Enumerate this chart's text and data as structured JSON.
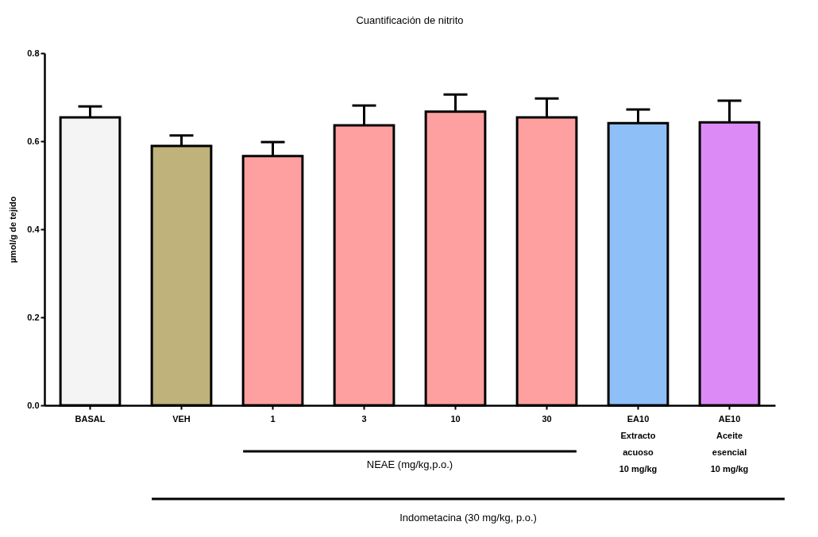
{
  "chart_data": {
    "type": "bar",
    "title": "Cuantificación de nitrito",
    "ylabel": "µmol/g de tejido",
    "categories": [
      "BASAL",
      "VEH",
      "1",
      "3",
      "10",
      "30",
      "EA10\nExtracto\nacuoso\n10 mg/kg",
      "AE10\nAceite\nesencial\n10 mg/kg"
    ],
    "values": [
      0.654,
      0.589,
      0.566,
      0.636,
      0.667,
      0.654,
      0.641,
      0.643
    ],
    "errors": [
      [
        0.654,
        0.679
      ],
      [
        0.589,
        0.613
      ],
      [
        0.566,
        0.598
      ],
      [
        0.636,
        0.681
      ],
      [
        0.667,
        0.706
      ],
      [
        0.654,
        0.697
      ],
      [
        0.641,
        0.672
      ],
      [
        0.643,
        0.692
      ]
    ],
    "colors": [
      "#f4f4f4",
      "#bfb27a",
      "#ffa0a0",
      "#ffa0a0",
      "#ffa0a0",
      "#ffa0a0",
      "#8fbff7",
      "#dc8af5"
    ],
    "ylim": [
      0,
      0.8
    ],
    "yticks": [
      {
        "value": 0,
        "label": "0.0"
      },
      {
        "value": 0.2,
        "label": "0.2"
      },
      {
        "value": 0.4,
        "label": "0.4"
      },
      {
        "value": 0.6,
        "label": "0.6"
      },
      {
        "value": 0.8,
        "label": "0.8"
      }
    ],
    "grid": false,
    "annotations": [
      "NEAE (mg/kg,p.o.)",
      "Indometacina (30 mg/kg, p.o.)"
    ]
  }
}
